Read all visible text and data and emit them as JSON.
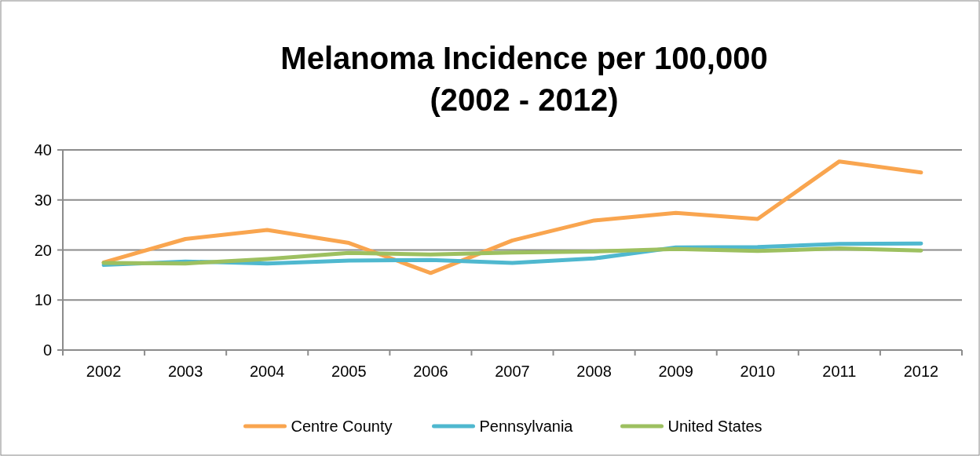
{
  "chart_data": {
    "type": "line",
    "title": "Melanoma Incidence per 100,000\n(2002 - 2012)",
    "categories": [
      "2002",
      "2003",
      "2004",
      "2005",
      "2006",
      "2007",
      "2008",
      "2009",
      "2010",
      "2011",
      "2012"
    ],
    "series": [
      {
        "name": "Centre County",
        "color": "#f9a54f",
        "values": [
          17.5,
          22.2,
          24.0,
          21.4,
          15.4,
          21.9,
          25.9,
          27.4,
          26.2,
          37.7,
          35.5
        ]
      },
      {
        "name": "Pennsylvania",
        "color": "#4fb8cf",
        "values": [
          17.0,
          17.7,
          17.3,
          17.9,
          18.0,
          17.4,
          18.3,
          20.5,
          20.6,
          21.2,
          21.3
        ]
      },
      {
        "name": "United States",
        "color": "#9dc060",
        "values": [
          17.4,
          17.3,
          18.2,
          19.4,
          19.1,
          19.5,
          19.7,
          20.2,
          19.8,
          20.3,
          19.9
        ]
      }
    ],
    "ylim": [
      0,
      40
    ],
    "yticks": [
      0,
      10,
      20,
      30,
      40
    ],
    "grid": "y",
    "legend": "bottom",
    "marker": "none",
    "line_style": "solid"
  }
}
